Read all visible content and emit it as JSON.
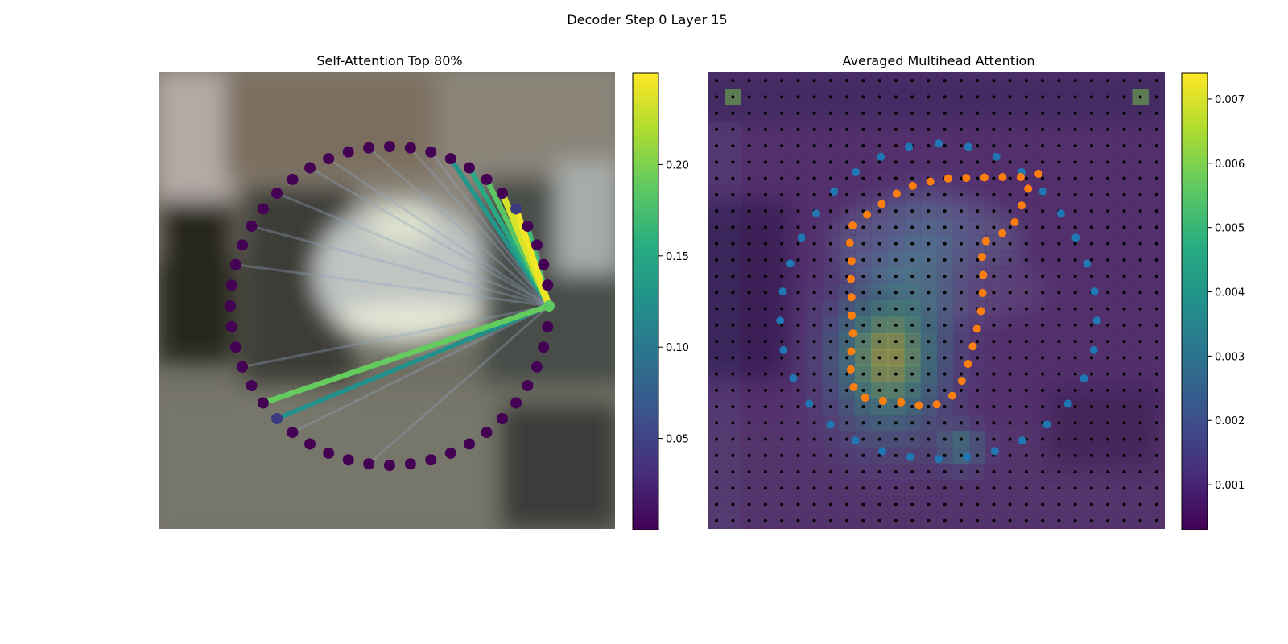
{
  "figure": {
    "suptitle": "Decoder Step 0 Layer 15"
  },
  "chart_data": [
    {
      "type": "network",
      "title": "Self-Attention Top 80%",
      "node_count": 48,
      "query_node_index": 0,
      "colormap": "viridis",
      "colorbar": {
        "min": 0.0,
        "max": 0.25,
        "ticks": [
          0.05,
          0.1,
          0.15,
          0.2
        ],
        "tick_labels": [
          "0.05",
          "0.10",
          "0.15",
          "0.20"
        ]
      },
      "strong_edges": [
        {
          "to": 5,
          "weight": 0.245
        },
        {
          "to": 6,
          "weight": 0.235
        },
        {
          "to": 4,
          "weight": 0.17
        },
        {
          "to": 7,
          "weight": 0.185
        },
        {
          "to": 8,
          "weight": 0.15
        },
        {
          "to": 9,
          "weight": 0.13
        },
        {
          "to": 29,
          "weight": 0.19
        },
        {
          "to": 30,
          "weight": 0.125
        }
      ],
      "weak_edges_to": [
        3,
        10,
        11,
        13,
        15,
        16,
        18,
        20,
        22,
        27,
        31,
        35
      ],
      "background": "blurred street scene with a car"
    },
    {
      "type": "heatmap",
      "title": "Averaged Multihead Attention",
      "colormap": "viridis",
      "grid_cells": 28,
      "colorbar": {
        "min": 0.0003,
        "max": 0.0074,
        "ticks": [
          0.001,
          0.002,
          0.003,
          0.004,
          0.005,
          0.006,
          0.007
        ],
        "tick_labels": [
          "0.001",
          "0.002",
          "0.003",
          "0.004",
          "0.005",
          "0.006",
          "0.007"
        ]
      },
      "series": [
        {
          "color": "#1f77b4",
          "shape": "outer ring of 34 points"
        },
        {
          "color": "#ff7f0e",
          "shape": "inner closed contour of 40 points"
        }
      ],
      "grid_points_color": "#000000"
    }
  ]
}
